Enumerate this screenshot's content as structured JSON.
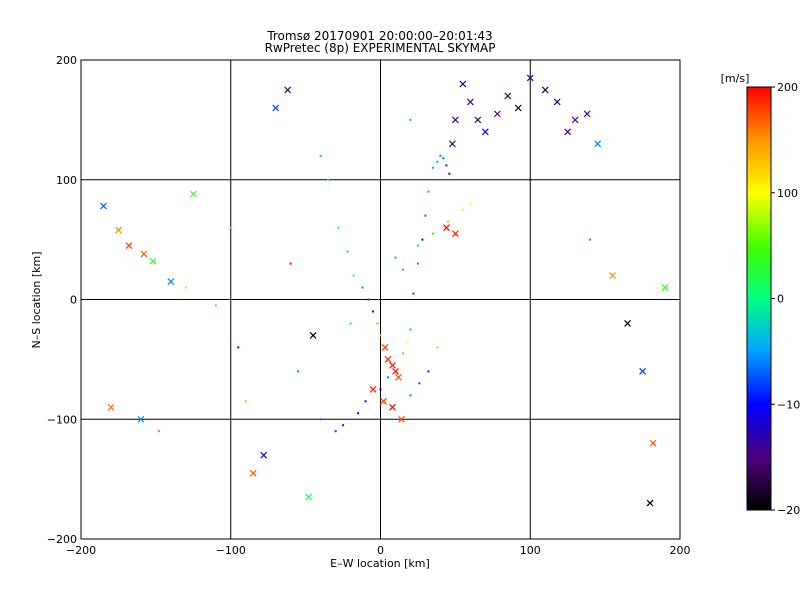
{
  "chart_data": {
    "type": "scatter",
    "title": "Tromsø 20170901 20:00:00–20:01:43",
    "subtitle": "RwPretec (8p) EXPERIMENTAL SKYMAP",
    "xlabel": "E–W location [km]",
    "ylabel": "N–S location [km]",
    "xlim": [
      -200,
      200
    ],
    "ylim": [
      -200,
      200
    ],
    "xticks": [
      "−200",
      "−100",
      "0",
      "100",
      "200"
    ],
    "yticks": [
      "−200",
      "−100",
      "0",
      "100",
      "200"
    ],
    "grid": true,
    "colorbar": {
      "label": "[m/s]",
      "range": [
        -200,
        200
      ],
      "ticks": [
        "−200",
        "−100",
        "0",
        "100",
        "200"
      ],
      "colormap": "rainbow-black-to-red"
    },
    "marker_types": [
      "dot",
      "cross"
    ],
    "series": [
      {
        "x": [
          -185,
          -175,
          -168,
          -158,
          -152,
          -148,
          -140,
          -125,
          -110,
          -95,
          -90,
          -85,
          -78,
          -70,
          -62,
          -55,
          -48,
          -45,
          -40,
          -35,
          -28,
          -22,
          -18,
          -12,
          -8,
          -5,
          -2,
          0,
          3,
          5,
          8,
          10,
          12,
          15,
          18,
          20,
          22,
          25,
          28,
          30,
          32,
          35,
          38,
          40,
          42,
          44,
          46,
          48,
          50,
          55,
          60,
          65,
          70,
          78,
          85,
          92,
          100,
          110,
          118,
          125,
          130,
          138,
          145,
          155,
          165,
          175,
          182,
          190,
          -180,
          -160,
          -130,
          -100,
          -60,
          -20,
          20,
          60,
          100,
          140,
          180,
          -5,
          2,
          8,
          14,
          20,
          26,
          32,
          38,
          44,
          50,
          -40,
          -30,
          -25,
          -15,
          -10,
          0,
          5,
          10,
          15,
          25,
          35,
          45,
          55
        ],
        "y": [
          78,
          58,
          45,
          38,
          32,
          -110,
          15,
          88,
          -5,
          -40,
          -85,
          -145,
          -130,
          160,
          175,
          -60,
          -165,
          -30,
          120,
          100,
          60,
          40,
          20,
          10,
          0,
          -10,
          -20,
          -30,
          -40,
          -50,
          -55,
          -60,
          -65,
          -45,
          -35,
          -25,
          5,
          30,
          50,
          70,
          90,
          110,
          115,
          120,
          118,
          112,
          105,
          130,
          150,
          180,
          165,
          150,
          140,
          155,
          170,
          160,
          185,
          175,
          165,
          140,
          150,
          155,
          130,
          20,
          -20,
          -60,
          -120,
          10,
          -90,
          -100,
          10,
          60,
          30,
          -20,
          150,
          80,
          100,
          50,
          -170,
          -75,
          -85,
          -90,
          -100,
          -80,
          -70,
          -60,
          -40,
          60,
          55,
          -100,
          -110,
          -105,
          -95,
          -85,
          -75,
          -65,
          35,
          25,
          45,
          55,
          65,
          75
        ],
        "v": [
          -70,
          150,
          180,
          170,
          40,
          160,
          -60,
          40,
          30,
          -140,
          60,
          170,
          -120,
          -80,
          -150,
          -60,
          20,
          -200,
          -40,
          0,
          10,
          -20,
          20,
          -60,
          -80,
          -110,
          150,
          120,
          180,
          190,
          200,
          190,
          170,
          140,
          100,
          -30,
          -80,
          -60,
          -100,
          -70,
          -40,
          -50,
          -50,
          -60,
          -70,
          -90,
          -110,
          -150,
          -160,
          -130,
          -140,
          -170,
          -120,
          -150,
          -160,
          -180,
          -150,
          -170,
          -160,
          -150,
          -140,
          -130,
          -60,
          150,
          -200,
          -80,
          170,
          40,
          160,
          -60,
          80,
          30,
          200,
          -20,
          -40,
          100,
          -180,
          -60,
          -200,
          190,
          180,
          200,
          170,
          -60,
          -80,
          -90,
          60,
          200,
          190,
          -70,
          -80,
          -90,
          -100,
          -110,
          -120,
          -60,
          -50,
          -40,
          -20,
          30,
          60,
          90
        ],
        "marker": [
          "cross",
          "cross",
          "cross",
          "cross",
          "cross",
          "dot",
          "cross",
          "cross",
          "dot",
          "dot",
          "dot",
          "cross",
          "cross",
          "cross",
          "cross",
          "dot",
          "cross",
          "cross",
          "dot",
          "dot",
          "dot",
          "dot",
          "dot",
          "dot",
          "dot",
          "dot",
          "dot",
          "dot",
          "cross",
          "cross",
          "cross",
          "cross",
          "cross",
          "dot",
          "dot",
          "dot",
          "dot",
          "dot",
          "dot",
          "dot",
          "dot",
          "dot",
          "dot",
          "dot",
          "dot",
          "dot",
          "dot",
          "cross",
          "cross",
          "cross",
          "cross",
          "cross",
          "cross",
          "cross",
          "cross",
          "cross",
          "cross",
          "cross",
          "cross",
          "cross",
          "cross",
          "cross",
          "cross",
          "cross",
          "cross",
          "cross",
          "cross",
          "cross",
          "cross",
          "cross",
          "dot",
          "dot",
          "dot",
          "dot",
          "dot",
          "dot",
          "dot",
          "dot",
          "cross",
          "cross",
          "cross",
          "cross",
          "cross",
          "dot",
          "dot",
          "dot",
          "dot",
          "cross",
          "cross",
          "dot",
          "dot",
          "dot",
          "dot",
          "dot",
          "dot",
          "dot",
          "dot",
          "dot",
          "dot",
          "dot",
          "dot",
          "dot"
        ]
      }
    ]
  }
}
